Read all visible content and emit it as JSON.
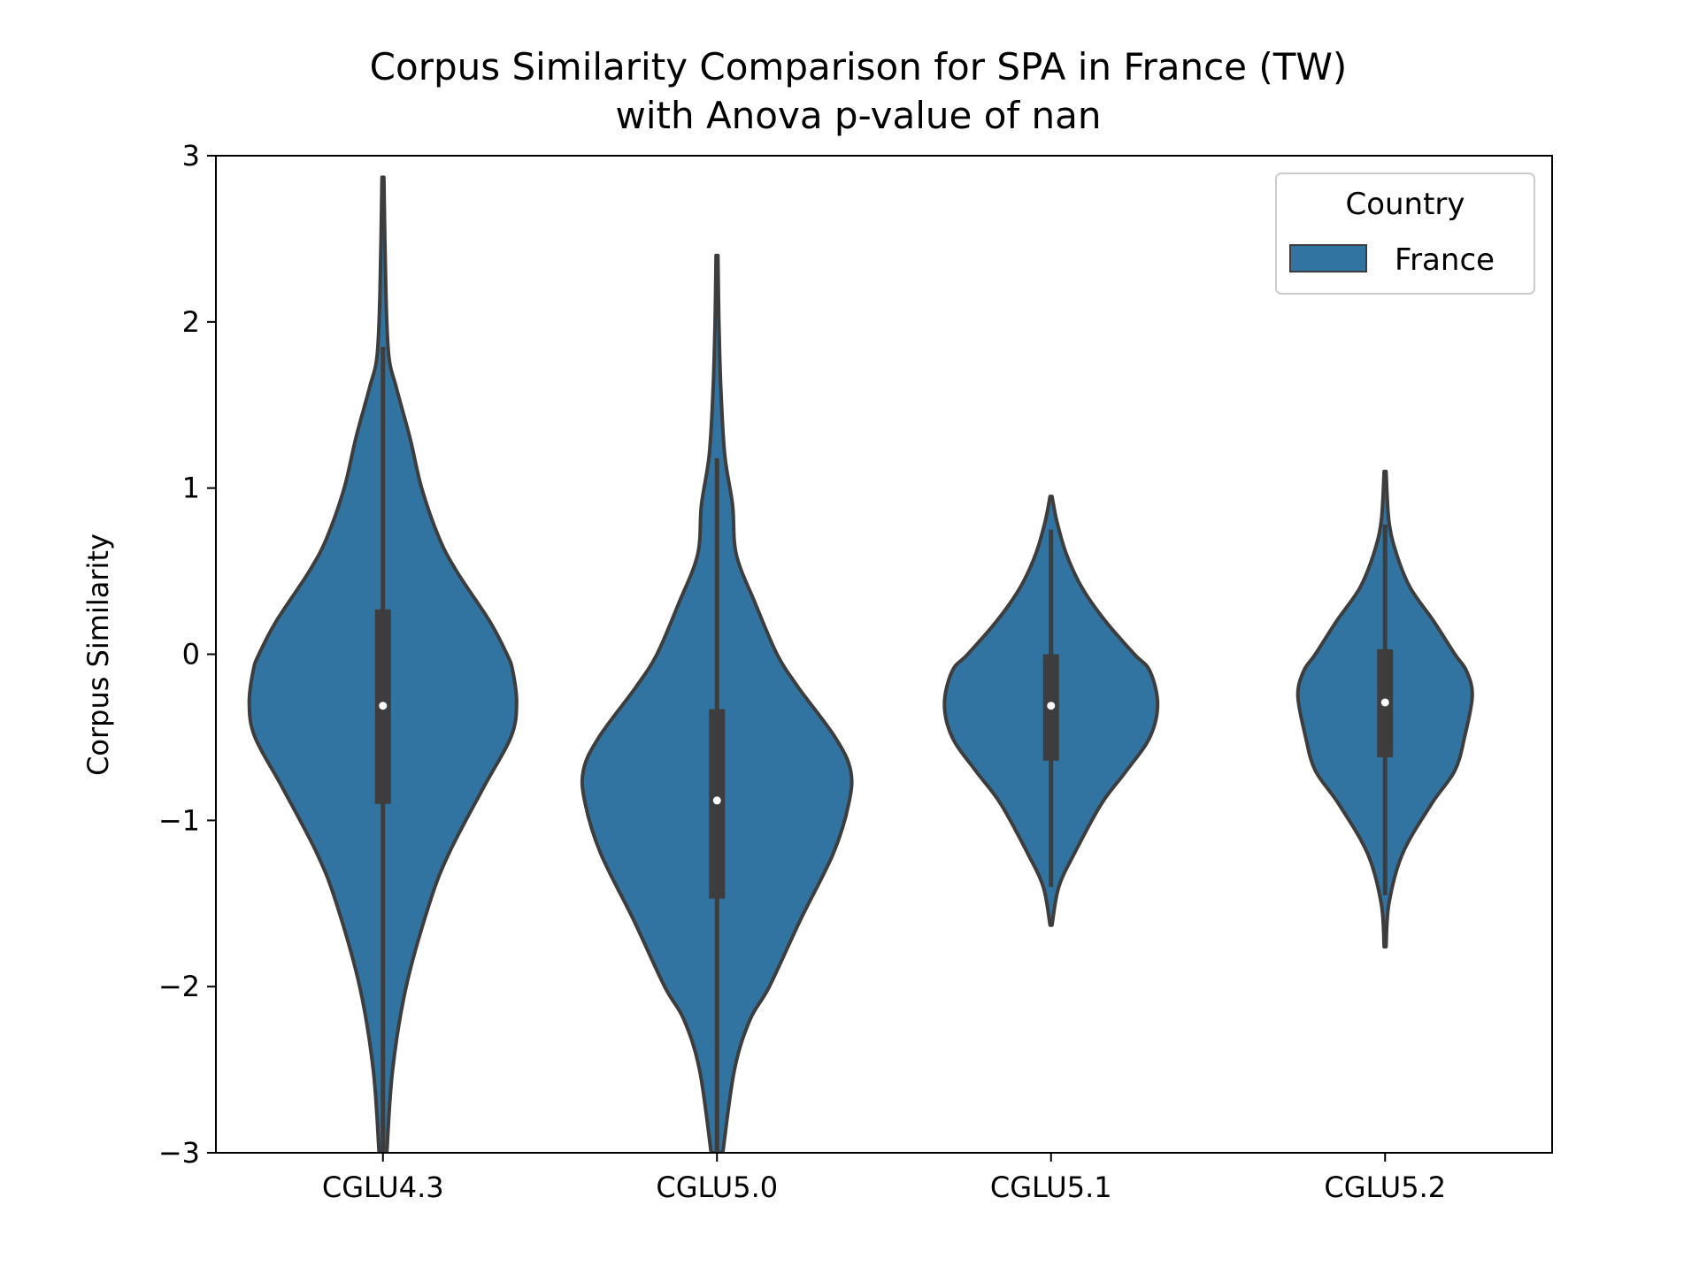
{
  "chart_data": {
    "type": "violin",
    "title_lines": [
      "Corpus Similarity Comparison for SPA in France (TW)",
      "with Anova p-value of nan"
    ],
    "xlabel": "",
    "ylabel": "Corpus Similarity",
    "categories": [
      "CGLU4.3",
      "CGLU5.0",
      "CGLU5.1",
      "CGLU5.2"
    ],
    "ylim": [
      -3,
      3
    ],
    "yticks": [
      3,
      2,
      1,
      0,
      -1,
      -2,
      -3
    ],
    "ytick_labels": [
      "3",
      "2",
      "1",
      "0",
      "−1",
      "−2",
      "−3"
    ],
    "grid": false,
    "legend": {
      "title": "Country",
      "placement": "top-right",
      "entries": [
        "France"
      ]
    },
    "colors": {
      "fill": "#3274a1",
      "edge": "#3d3d3d",
      "median": "#ffffff"
    },
    "series": [
      {
        "name": "France",
        "violins": [
          {
            "category": "CGLU4.3",
            "profile": [
              [
                -3.0,
                0.02
              ],
              [
                -2.5,
                0.05
              ],
              [
                -2.0,
                0.12
              ],
              [
                -1.5,
                0.24
              ],
              [
                -1.2,
                0.34
              ],
              [
                -0.8,
                0.52
              ],
              [
                -0.5,
                0.66
              ],
              [
                -0.3,
                0.69
              ],
              [
                -0.1,
                0.67
              ],
              [
                0.0,
                0.64
              ],
              [
                0.2,
                0.55
              ],
              [
                0.5,
                0.38
              ],
              [
                0.7,
                0.29
              ],
              [
                1.0,
                0.2
              ],
              [
                1.3,
                0.14
              ],
              [
                1.6,
                0.07
              ],
              [
                1.8,
                0.03
              ],
              [
                2.2,
                0.015
              ],
              [
                2.87,
                0.005
              ]
            ],
            "whisker": [
              -3.0,
              1.85
            ],
            "q1": -0.9,
            "q3": 0.27,
            "median": -0.31
          },
          {
            "category": "CGLU5.0",
            "profile": [
              [
                -3.0,
                0.03
              ],
              [
                -2.5,
                0.09
              ],
              [
                -2.2,
                0.17
              ],
              [
                -2.0,
                0.27
              ],
              [
                -1.6,
                0.43
              ],
              [
                -1.2,
                0.6
              ],
              [
                -0.9,
                0.68
              ],
              [
                -0.7,
                0.69
              ],
              [
                -0.5,
                0.61
              ],
              [
                -0.2,
                0.42
              ],
              [
                0.0,
                0.31
              ],
              [
                0.3,
                0.2
              ],
              [
                0.6,
                0.1
              ],
              [
                0.9,
                0.08
              ],
              [
                1.2,
                0.04
              ],
              [
                1.6,
                0.02
              ],
              [
                2.0,
                0.01
              ],
              [
                2.4,
                0.005
              ]
            ],
            "whisker": [
              -3.0,
              1.18
            ],
            "q1": -1.47,
            "q3": -0.33,
            "median": -0.88
          },
          {
            "category": "CGLU5.1",
            "profile": [
              [
                -1.63,
                0.005
              ],
              [
                -1.4,
                0.04
              ],
              [
                -1.2,
                0.12
              ],
              [
                -0.9,
                0.26
              ],
              [
                -0.7,
                0.39
              ],
              [
                -0.5,
                0.51
              ],
              [
                -0.3,
                0.55
              ],
              [
                -0.1,
                0.51
              ],
              [
                0.0,
                0.43
              ],
              [
                0.2,
                0.28
              ],
              [
                0.4,
                0.16
              ],
              [
                0.6,
                0.08
              ],
              [
                0.8,
                0.03
              ],
              [
                0.95,
                0.005
              ]
            ],
            "whisker": [
              -1.4,
              0.75
            ],
            "q1": -0.64,
            "q3": 0.0,
            "median": -0.31
          },
          {
            "category": "CGLU5.2",
            "profile": [
              [
                -1.76,
                0.005
              ],
              [
                -1.5,
                0.02
              ],
              [
                -1.2,
                0.09
              ],
              [
                -0.9,
                0.24
              ],
              [
                -0.7,
                0.36
              ],
              [
                -0.5,
                0.41
              ],
              [
                -0.25,
                0.45
              ],
              [
                -0.1,
                0.42
              ],
              [
                0.0,
                0.36
              ],
              [
                0.2,
                0.25
              ],
              [
                0.4,
                0.13
              ],
              [
                0.6,
                0.06
              ],
              [
                0.8,
                0.02
              ],
              [
                1.1,
                0.005
              ]
            ],
            "whisker": [
              -1.45,
              0.78
            ],
            "q1": -0.62,
            "q3": 0.03,
            "median": -0.29
          }
        ]
      }
    ]
  }
}
